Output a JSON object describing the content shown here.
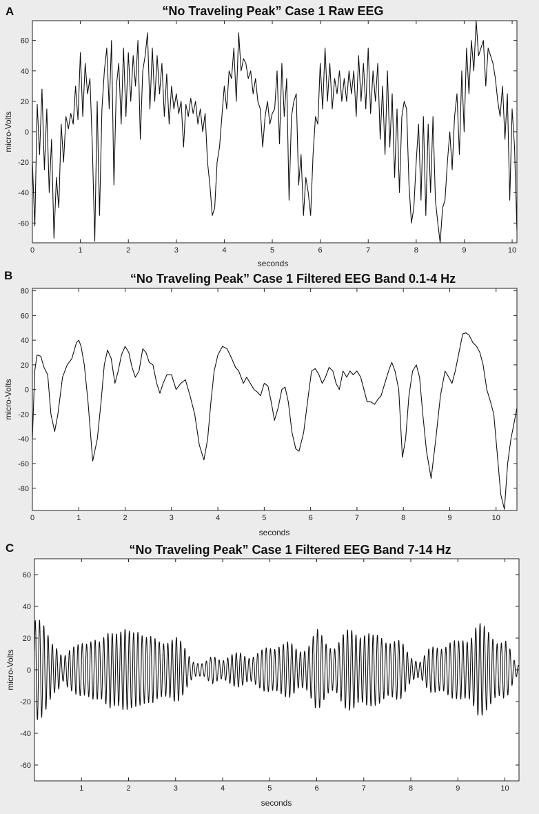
{
  "chart_data": [
    {
      "type": "line",
      "panel_letter": "A",
      "title": "“No Traveling Peak” Case 1 Raw EEG",
      "xlabel": "seconds",
      "ylabel": "micro-Volts",
      "xlim": [
        0,
        10.1
      ],
      "ylim": [
        -73,
        73
      ],
      "xticks": [
        0,
        1,
        2,
        3,
        4,
        5,
        6,
        7,
        8,
        9,
        10
      ],
      "yticks": [
        -60,
        -40,
        -20,
        0,
        20,
        40,
        60
      ],
      "grid": false,
      "series": [
        {
          "x": [
            0,
            0.05,
            0.1,
            0.15,
            0.2,
            0.25,
            0.3,
            0.35,
            0.4,
            0.45,
            0.5,
            0.55,
            0.6,
            0.65,
            0.7,
            0.75,
            0.8,
            0.85,
            0.9,
            0.95,
            1.0,
            1.05,
            1.1,
            1.15,
            1.2,
            1.25,
            1.3,
            1.35,
            1.4,
            1.45,
            1.5,
            1.55,
            1.6,
            1.65,
            1.7,
            1.75,
            1.8,
            1.85,
            1.9,
            1.95,
            2.0,
            2.05,
            2.1,
            2.15,
            2.2,
            2.25,
            2.3,
            2.35,
            2.4,
            2.45,
            2.5,
            2.55,
            2.6,
            2.65,
            2.7,
            2.75,
            2.8,
            2.85,
            2.9,
            2.95,
            3.0,
            3.05,
            3.1,
            3.15,
            3.2,
            3.25,
            3.3,
            3.35,
            3.4,
            3.45,
            3.5,
            3.55,
            3.6,
            3.65,
            3.7,
            3.75,
            3.8,
            3.85,
            3.9,
            3.95,
            4.0,
            4.05,
            4.1,
            4.15,
            4.2,
            4.25,
            4.3,
            4.35,
            4.4,
            4.45,
            4.5,
            4.55,
            4.6,
            4.65,
            4.7,
            4.75,
            4.8,
            4.85,
            4.9,
            4.95,
            5.0,
            5.05,
            5.1,
            5.15,
            5.2,
            5.25,
            5.3,
            5.35,
            5.4,
            5.45,
            5.5,
            5.55,
            5.6,
            5.65,
            5.7,
            5.75,
            5.8,
            5.85,
            5.9,
            5.95,
            6.0,
            6.05,
            6.1,
            6.15,
            6.2,
            6.25,
            6.3,
            6.35,
            6.4,
            6.45,
            6.5,
            6.55,
            6.6,
            6.65,
            6.7,
            6.75,
            6.8,
            6.85,
            6.9,
            6.95,
            7.0,
            7.05,
            7.1,
            7.15,
            7.2,
            7.25,
            7.3,
            7.35,
            7.4,
            7.45,
            7.5,
            7.55,
            7.6,
            7.65,
            7.7,
            7.75,
            7.8,
            7.85,
            7.9,
            7.95,
            8.0,
            8.05,
            8.1,
            8.15,
            8.2,
            8.25,
            8.3,
            8.35,
            8.4,
            8.45,
            8.5,
            8.55,
            8.6,
            8.65,
            8.7,
            8.75,
            8.8,
            8.85,
            8.9,
            8.95,
            9.0,
            9.05,
            9.1,
            9.15,
            9.2,
            9.25,
            9.3,
            9.35,
            9.4,
            9.45,
            9.5,
            9.55,
            9.6,
            9.65,
            9.7,
            9.75,
            9.8,
            9.85,
            9.9,
            9.95,
            10.0,
            10.05,
            10.1
          ],
          "values": [
            -20,
            -62,
            18,
            -15,
            28,
            -25,
            15,
            -40,
            -5,
            -70,
            -30,
            -50,
            5,
            -20,
            10,
            2,
            12,
            5,
            30,
            8,
            52,
            10,
            45,
            25,
            35,
            -10,
            -72,
            20,
            -55,
            15,
            40,
            55,
            15,
            60,
            -35,
            30,
            45,
            5,
            55,
            10,
            52,
            20,
            50,
            30,
            60,
            -5,
            40,
            50,
            65,
            15,
            55,
            20,
            50,
            25,
            45,
            10,
            38,
            5,
            30,
            15,
            25,
            12,
            20,
            -10,
            18,
            10,
            22,
            12,
            20,
            5,
            15,
            0,
            12,
            -20,
            -35,
            -55,
            -50,
            -20,
            -10,
            10,
            30,
            15,
            40,
            35,
            55,
            20,
            65,
            40,
            48,
            45,
            35,
            40,
            25,
            35,
            20,
            15,
            -10,
            10,
            20,
            5,
            12,
            15,
            40,
            -8,
            45,
            10,
            35,
            -45,
            10,
            20,
            25,
            -35,
            -15,
            -55,
            -30,
            -40,
            -55,
            -15,
            10,
            5,
            45,
            15,
            55,
            20,
            45,
            15,
            35,
            25,
            40,
            20,
            35,
            20,
            40,
            25,
            40,
            10,
            50,
            20,
            45,
            15,
            55,
            12,
            40,
            20,
            45,
            -5,
            30,
            -15,
            40,
            -10,
            25,
            -30,
            15,
            -40,
            10,
            20,
            15,
            -35,
            -60,
            -50,
            -20,
            5,
            -45,
            10,
            -55,
            5,
            -40,
            10,
            -45,
            -60,
            -73,
            -50,
            -45,
            -20,
            0,
            -25,
            10,
            25,
            -15,
            40,
            0,
            55,
            25,
            60,
            40,
            73,
            50,
            55,
            60,
            30,
            55,
            50,
            45,
            35,
            20,
            10,
            30,
            -5,
            25,
            -45,
            15,
            -10,
            -65
          ]
        }
      ]
    },
    {
      "type": "line",
      "panel_letter": "B",
      "title": "“No Traveling Peak” Case 1 Filtered EEG Band 0.1-4 Hz",
      "xlabel": "seconds",
      "ylabel": "micro-Volts",
      "xlim": [
        0,
        10.45
      ],
      "ylim": [
        -98,
        82
      ],
      "xticks": [
        0,
        1,
        2,
        3,
        4,
        5,
        6,
        7,
        8,
        9,
        10
      ],
      "yticks": [
        -80,
        -60,
        -40,
        -20,
        0,
        20,
        40,
        60,
        80
      ],
      "grid": false,
      "series": [
        {
          "x": [
            0,
            0.05,
            0.1,
            0.18,
            0.25,
            0.33,
            0.4,
            0.48,
            0.55,
            0.65,
            0.75,
            0.85,
            0.95,
            1.0,
            1.05,
            1.12,
            1.2,
            1.3,
            1.4,
            1.48,
            1.55,
            1.62,
            1.7,
            1.78,
            1.85,
            1.92,
            2.0,
            2.08,
            2.15,
            2.22,
            2.3,
            2.38,
            2.45,
            2.52,
            2.6,
            2.68,
            2.75,
            2.82,
            2.9,
            3.0,
            3.1,
            3.2,
            3.3,
            3.4,
            3.5,
            3.6,
            3.7,
            3.78,
            3.85,
            3.92,
            4.0,
            4.1,
            4.2,
            4.3,
            4.38,
            4.45,
            4.55,
            4.62,
            4.7,
            4.78,
            4.85,
            4.92,
            5.0,
            5.08,
            5.15,
            5.22,
            5.3,
            5.38,
            5.45,
            5.52,
            5.6,
            5.68,
            5.75,
            5.85,
            5.95,
            6.02,
            6.1,
            6.18,
            6.25,
            6.32,
            6.4,
            6.48,
            6.55,
            6.62,
            6.7,
            6.78,
            6.85,
            6.92,
            7.0,
            7.08,
            7.15,
            7.22,
            7.3,
            7.38,
            7.45,
            7.52,
            7.6,
            7.68,
            7.75,
            7.82,
            7.9,
            7.98,
            8.05,
            8.12,
            8.2,
            8.28,
            8.35,
            8.42,
            8.5,
            8.6,
            8.7,
            8.8,
            8.9,
            8.98,
            9.05,
            9.12,
            9.2,
            9.28,
            9.35,
            9.42,
            9.5,
            9.58,
            9.65,
            9.72,
            9.8,
            9.88,
            9.95,
            10.02,
            10.1,
            10.18,
            10.25,
            10.32,
            10.4,
            10.45
          ],
          "values": [
            -40,
            15,
            28,
            27,
            18,
            12,
            -20,
            -34,
            -20,
            10,
            20,
            25,
            38,
            40,
            35,
            20,
            -10,
            -58,
            -40,
            -10,
            20,
            32,
            25,
            5,
            15,
            28,
            35,
            30,
            18,
            10,
            15,
            33,
            30,
            22,
            20,
            5,
            -3,
            5,
            12,
            12,
            0,
            5,
            8,
            -5,
            -20,
            -45,
            -57,
            -40,
            -10,
            15,
            28,
            35,
            33,
            25,
            18,
            15,
            5,
            10,
            5,
            0,
            -2,
            -5,
            5,
            3,
            -10,
            -25,
            -15,
            0,
            2,
            -10,
            -35,
            -48,
            -50,
            -35,
            -5,
            15,
            17,
            12,
            5,
            10,
            18,
            15,
            5,
            0,
            15,
            10,
            15,
            12,
            15,
            10,
            0,
            -10,
            -10,
            -12,
            -8,
            -5,
            5,
            15,
            22,
            15,
            0,
            -55,
            -40,
            -5,
            15,
            20,
            10,
            -20,
            -50,
            -72,
            -40,
            -5,
            15,
            10,
            5,
            15,
            30,
            45,
            46,
            44,
            38,
            35,
            30,
            20,
            0,
            -10,
            -20,
            -50,
            -85,
            -97,
            -60,
            -40,
            -25,
            -15
          ]
        }
      ]
    },
    {
      "type": "line",
      "panel_letter": "C",
      "title": "“No Traveling Peak” Case 1 Filtered EEG Band 7-14 Hz",
      "xlabel": "seconds",
      "ylabel": "micro-Volts",
      "xlim": [
        0,
        10.3
      ],
      "ylim": [
        -70,
        70
      ],
      "xticks": [
        1,
        2,
        3,
        4,
        5,
        6,
        7,
        8,
        9,
        10
      ],
      "yticks": [
        -60,
        -40,
        -20,
        0,
        20,
        40,
        60
      ],
      "grid": false,
      "series": [
        {
          "name": "",
          "frequency_hz": 11,
          "amplitude_envelope": {
            "t": [
              0,
              0.1,
              0.3,
              0.5,
              0.6,
              0.8,
              1.0,
              1.2,
              1.4,
              1.6,
              1.8,
              2.0,
              2.2,
              2.4,
              2.6,
              2.8,
              3.0,
              3.2,
              3.4,
              3.6,
              3.8,
              4.0,
              4.2,
              4.4,
              4.6,
              4.8,
              5.0,
              5.2,
              5.4,
              5.6,
              5.8,
              6.0,
              6.2,
              6.4,
              6.6,
              6.8,
              7.0,
              7.2,
              7.4,
              7.6,
              7.8,
              8.0,
              8.2,
              8.4,
              8.6,
              8.8,
              9.0,
              9.2,
              9.4,
              9.6,
              9.8,
              10.0,
              10.2,
              10.3
            ],
            "a": [
              36,
              32,
              25,
              18,
              8,
              14,
              24,
              20,
              18,
              35,
              25,
              26,
              34,
              22,
              20,
              24,
              22,
              15,
              6,
              4,
              10,
              8,
              10,
              12,
              10,
              12,
              16,
              20,
              18,
              14,
              18,
              26,
              20,
              18,
              24,
              30,
              28,
              22,
              25,
              22,
              18,
              10,
              6,
              14,
              18,
              20,
              18,
              24,
              34,
              26,
              24,
              22,
              6,
              3
            ]
          }
        }
      ]
    }
  ]
}
